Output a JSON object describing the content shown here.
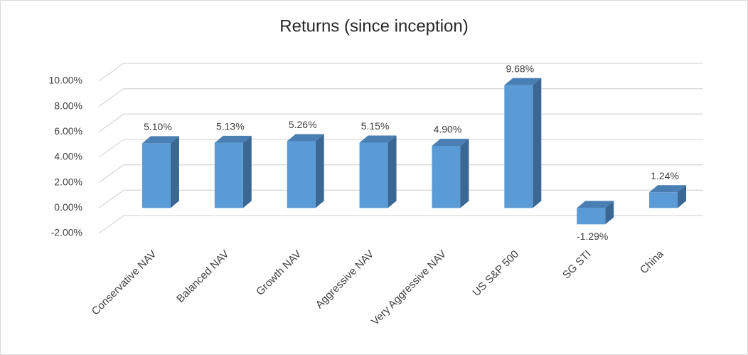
{
  "chart_data": {
    "type": "bar3d",
    "title": "Returns (since inception)",
    "categories": [
      "Conservative NAV",
      "Balanced NAV",
      "Growth NAV",
      "Aggressive NAV",
      "Very Aggressive NAV",
      "US S&P 500",
      "SG STI",
      "China"
    ],
    "values": [
      5.1,
      5.13,
      5.26,
      5.15,
      4.9,
      9.68,
      -1.29,
      1.24
    ],
    "value_labels": [
      "5.10%",
      "5.13%",
      "5.26%",
      "5.15%",
      "4.90%",
      "9.68%",
      "-1.29%",
      "1.24%"
    ],
    "color": "#5b9bd5",
    "ylim": [
      -2,
      10
    ],
    "yticks": [
      {
        "value": -2,
        "label": "-2.00%"
      },
      {
        "value": 0,
        "label": "0.00%"
      },
      {
        "value": 2,
        "label": "2.00%"
      },
      {
        "value": 4,
        "label": "4.00%"
      },
      {
        "value": 6,
        "label": "6.00%"
      },
      {
        "value": 8,
        "label": "8.00%"
      },
      {
        "value": 10,
        "label": "10.00%"
      }
    ],
    "grid": true
  }
}
